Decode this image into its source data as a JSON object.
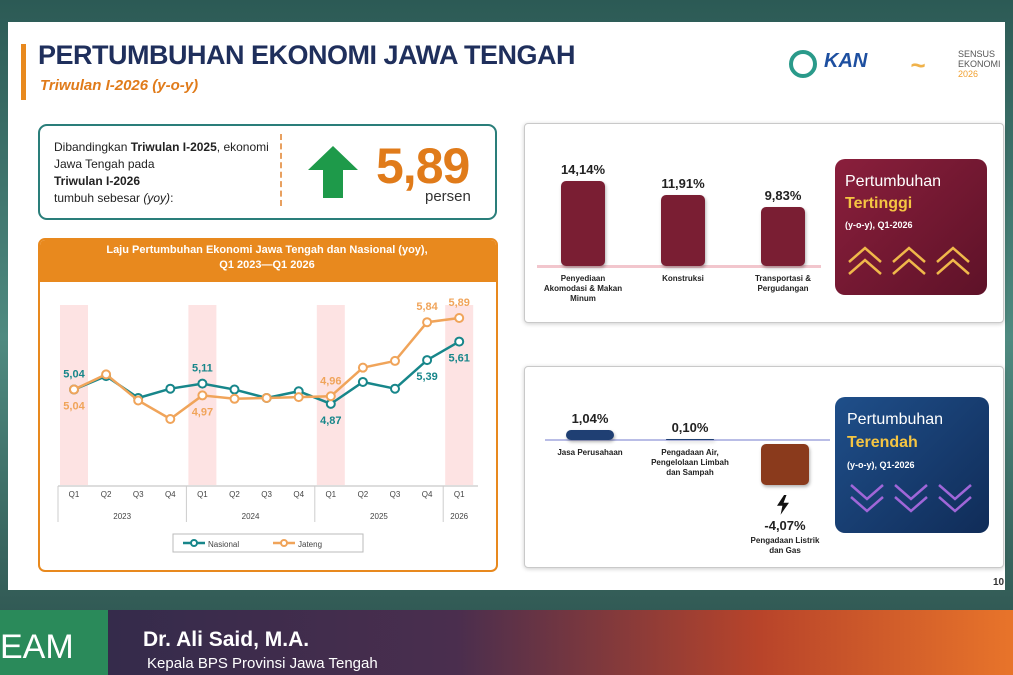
{
  "header": {
    "title": "PERTUMBUHAN EKONOMI JAWA TENGAH",
    "subtitle": "Triwulan I-2026 (y-o-y)",
    "logo_kan": "KAN",
    "logo_sensus": [
      "SENSUS",
      "EKONOMI",
      "2026"
    ]
  },
  "summary": {
    "text": [
      "Dibandingkan ",
      "Triwulan I-2025",
      ", ekonomi Jawa Tengah pada",
      "Triwulan I-2026",
      "tumbuh sebesar ",
      "(yoy)",
      ":"
    ],
    "value": "5,89",
    "unit": "persen"
  },
  "chart_data": [
    {
      "type": "line",
      "title": "Laju Pertumbuhan Ekonomi Jawa Tengah dan Nasional (yoy),",
      "subtitle": "Q1 2023—Q1 2026",
      "categories": [
        "Q1",
        "Q2",
        "Q3",
        "Q4",
        "Q1",
        "Q2",
        "Q3",
        "Q4",
        "Q1",
        "Q2",
        "Q3",
        "Q4",
        "Q1"
      ],
      "year_labels": [
        "2023",
        "2024",
        "2025",
        "2026"
      ],
      "series": [
        {
          "name": "Nasional",
          "color": "#17868a",
          "values": [
            5.04,
            5.2,
            4.94,
            5.05,
            5.11,
            5.04,
            4.94,
            5.02,
            4.87,
            5.13,
            5.05,
            5.39,
            5.61
          ],
          "value_labels": [
            "5,04",
            null,
            null,
            null,
            "5,11",
            null,
            null,
            null,
            "4,87",
            null,
            null,
            "5,39",
            "5,61"
          ]
        },
        {
          "name": "Jateng",
          "color": "#f0a45a",
          "values": [
            5.04,
            5.22,
            4.91,
            4.69,
            4.97,
            4.93,
            4.94,
            4.95,
            4.96,
            5.3,
            5.38,
            5.84,
            5.89
          ],
          "value_labels": [
            "5,04",
            null,
            null,
            null,
            "4,97",
            null,
            null,
            null,
            "4,96",
            null,
            null,
            "5,84",
            "5,89"
          ]
        }
      ]
    },
    {
      "type": "bar",
      "panel_title": "Pertumbuhan",
      "panel_highlight": "Tertinggi",
      "panel_note": "(y-o-y), Q1-2026",
      "categories": [
        "Penyediaan Akomodasi & Makan Minum",
        "Konstruksi",
        "Transportasi & Pergudangan"
      ],
      "values": [
        14.14,
        11.91,
        9.83
      ],
      "value_labels": [
        "14,14%",
        "11,91%",
        "9,83%"
      ],
      "colors": [
        "#7a1e33",
        "#7a1e33",
        "#7a1e33"
      ]
    },
    {
      "type": "bar",
      "panel_title": "Pertumbuhan",
      "panel_highlight": "Terendah",
      "panel_note": "(y-o-y), Q1-2026",
      "categories": [
        "Jasa Perusahaan",
        "Pengadaan Air, Pengelolaan Limbah dan Sampah",
        "Pengadaan Listrik dan Gas"
      ],
      "values": [
        1.04,
        0.1,
        -4.07
      ],
      "value_labels": [
        "1,04%",
        "0,10%",
        "-4,07%"
      ],
      "colors": [
        "#1f3f73",
        "#1f3f73",
        "#8a3a1c"
      ]
    }
  ],
  "page_number": "10",
  "footer": {
    "brand": "EAM",
    "name": "Dr. Ali Said, M.A.",
    "role": "Kepala BPS Provinsi Jawa Tengah"
  }
}
